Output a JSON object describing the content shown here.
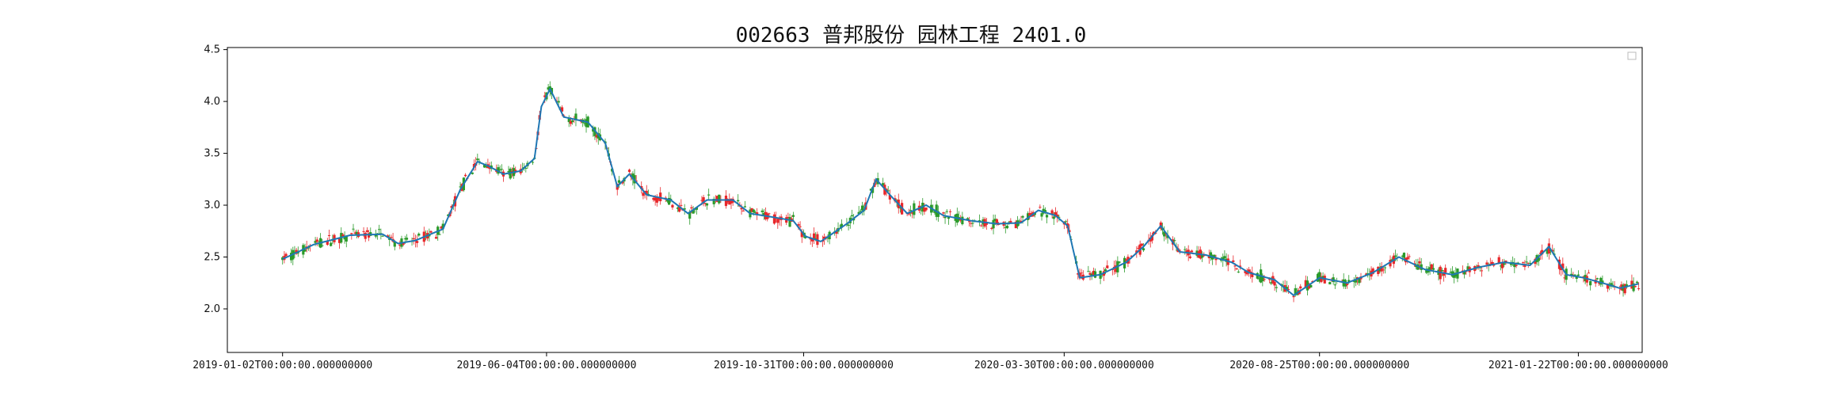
{
  "chart_data": {
    "type": "candlestick",
    "title": "002663 普邦股份 园林工程 2401.0",
    "xlabel": "",
    "ylabel": "",
    "ylim": [
      1.58,
      4.52
    ],
    "yticks": [
      2.0,
      2.5,
      3.0,
      3.5,
      4.0,
      4.5
    ],
    "xlim": [
      "2018-12-01",
      "2021-02-28"
    ],
    "x_tick_labels": [
      {
        "date": "2019-01-02",
        "label": "2019-01-02T00:00:00.000000000"
      },
      {
        "date": "2019-06-04",
        "label": "2019-06-04T00:00:00.000000000"
      },
      {
        "date": "2019-10-31",
        "label": "2019-10-31T00:00:00.000000000"
      },
      {
        "date": "2020-03-30",
        "label": "2020-03-30T00:00:00.000000000"
      },
      {
        "date": "2020-08-25",
        "label": "2020-08-25T00:00:00.000000000"
      },
      {
        "date": "2021-01-22",
        "label": "2021-01-22T00:00:00.000000000"
      }
    ],
    "grid": false,
    "legend": {
      "position": "top-right",
      "entries": []
    },
    "colors": {
      "up": "#e8262a",
      "down": "#2a9a2a",
      "smooth_line": "#1f77b4",
      "axes": "#000000"
    },
    "series": [
      {
        "kind": "smoothed_close_line",
        "points": [
          [
            "2019-01-02",
            2.48
          ],
          [
            "2019-01-20",
            2.62
          ],
          [
            "2019-02-10",
            2.71
          ],
          [
            "2019-03-01",
            2.72
          ],
          [
            "2019-03-10",
            2.63
          ],
          [
            "2019-03-20",
            2.66
          ],
          [
            "2019-04-05",
            2.77
          ],
          [
            "2019-04-15",
            3.15
          ],
          [
            "2019-04-25",
            3.42
          ],
          [
            "2019-05-01",
            3.38
          ],
          [
            "2019-05-10",
            3.3
          ],
          [
            "2019-05-20",
            3.33
          ],
          [
            "2019-05-28",
            3.45
          ],
          [
            "2019-06-01",
            3.95
          ],
          [
            "2019-06-06",
            4.12
          ],
          [
            "2019-06-14",
            3.85
          ],
          [
            "2019-06-28",
            3.8
          ],
          [
            "2019-07-08",
            3.6
          ],
          [
            "2019-07-15",
            3.18
          ],
          [
            "2019-07-22",
            3.3
          ],
          [
            "2019-08-01",
            3.1
          ],
          [
            "2019-08-15",
            3.05
          ],
          [
            "2019-08-25",
            2.92
          ],
          [
            "2019-09-05",
            3.05
          ],
          [
            "2019-09-20",
            3.05
          ],
          [
            "2019-09-30",
            2.92
          ],
          [
            "2019-10-15",
            2.88
          ],
          [
            "2019-10-25",
            2.85
          ],
          [
            "2019-11-01",
            2.7
          ],
          [
            "2019-11-10",
            2.65
          ],
          [
            "2019-11-25",
            2.82
          ],
          [
            "2019-12-05",
            2.95
          ],
          [
            "2019-12-12",
            3.25
          ],
          [
            "2019-12-20",
            3.1
          ],
          [
            "2019-12-30",
            2.92
          ],
          [
            "2020-01-10",
            3.0
          ],
          [
            "2020-01-20",
            2.9
          ],
          [
            "2020-02-05",
            2.85
          ],
          [
            "2020-02-20",
            2.82
          ],
          [
            "2020-03-05",
            2.83
          ],
          [
            "2020-03-15",
            2.95
          ],
          [
            "2020-03-25",
            2.9
          ],
          [
            "2020-04-01",
            2.8
          ],
          [
            "2020-04-08",
            2.3
          ],
          [
            "2020-04-20",
            2.33
          ],
          [
            "2020-05-05",
            2.45
          ],
          [
            "2020-05-15",
            2.6
          ],
          [
            "2020-05-25",
            2.8
          ],
          [
            "2020-06-05",
            2.55
          ],
          [
            "2020-06-20",
            2.52
          ],
          [
            "2020-07-05",
            2.45
          ],
          [
            "2020-07-15",
            2.35
          ],
          [
            "2020-07-30",
            2.28
          ],
          [
            "2020-08-10",
            2.13
          ],
          [
            "2020-08-25",
            2.3
          ],
          [
            "2020-09-10",
            2.25
          ],
          [
            "2020-09-25",
            2.35
          ],
          [
            "2020-10-10",
            2.5
          ],
          [
            "2020-10-25",
            2.38
          ],
          [
            "2020-11-10",
            2.33
          ],
          [
            "2020-11-25",
            2.4
          ],
          [
            "2020-12-10",
            2.45
          ],
          [
            "2020-12-25",
            2.42
          ],
          [
            "2021-01-05",
            2.6
          ],
          [
            "2021-01-15",
            2.33
          ],
          [
            "2021-01-25",
            2.3
          ],
          [
            "2021-02-05",
            2.25
          ],
          [
            "2021-02-15",
            2.2
          ],
          [
            "2021-02-28",
            2.25
          ]
        ]
      }
    ]
  }
}
